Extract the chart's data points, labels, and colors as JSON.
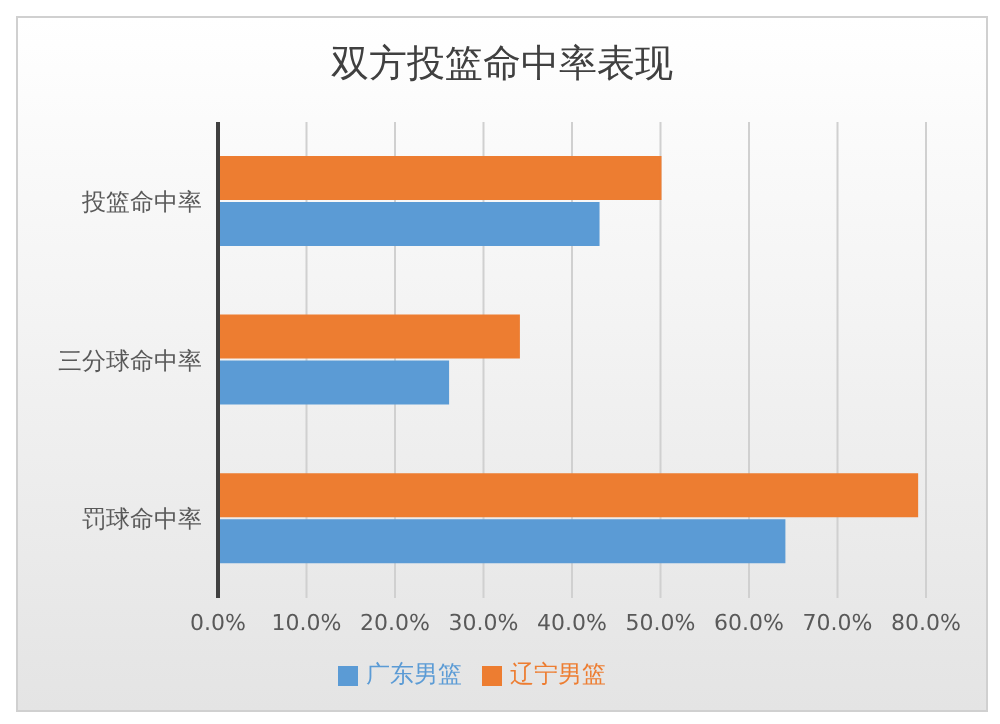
{
  "chart_data": {
    "type": "bar",
    "orientation": "horizontal",
    "title": "双方投篮命中率表现",
    "categories": [
      "投篮命中率",
      "三分球命中率",
      "罚球命中率"
    ],
    "series": [
      {
        "name": "辽宁男篮",
        "color": "#ed7d31",
        "values": [
          50,
          34,
          79
        ]
      },
      {
        "name": "广东男篮",
        "color": "#5b9bd5",
        "values": [
          43,
          26,
          64
        ]
      }
    ],
    "xlim": [
      0,
      80
    ],
    "xticks": [
      {
        "value": 0,
        "label": "0.0%"
      },
      {
        "value": 10,
        "label": "10.0%"
      },
      {
        "value": 20,
        "label": "20.0%"
      },
      {
        "value": 30,
        "label": "30.0%"
      },
      {
        "value": 40,
        "label": "40.0%"
      },
      {
        "value": 50,
        "label": "50.0%"
      },
      {
        "value": 60,
        "label": "60.0%"
      },
      {
        "value": 70,
        "label": "70.0%"
      },
      {
        "value": 80,
        "label": "80.0%"
      }
    ],
    "grid": "x",
    "legend": "bottom"
  }
}
